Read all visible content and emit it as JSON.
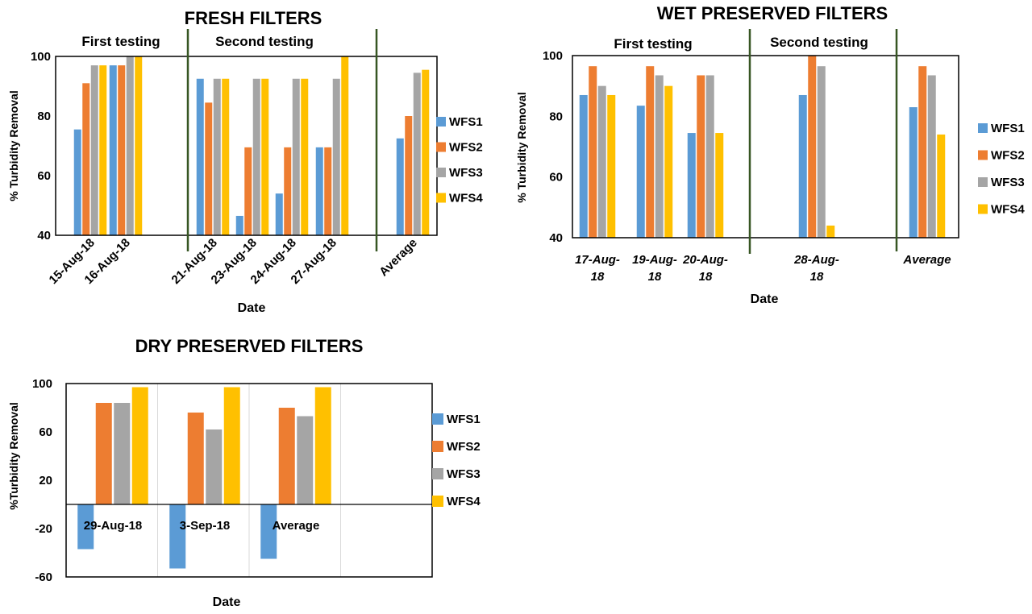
{
  "colors": {
    "WFS1": "#5B9BD5",
    "WFS2": "#ED7D31",
    "WFS3": "#A5A5A5",
    "WFS4": "#FFC000",
    "divider": "#375623"
  },
  "chart_data": [
    {
      "type": "bar",
      "title": "FRESH FILTERS",
      "xlabel": "Date",
      "ylabel": "% Turbidity Removal",
      "ylim": [
        40,
        100
      ],
      "yticks": [
        "40",
        "60",
        "80",
        "100"
      ],
      "groups": [
        "First testing",
        "Second testing"
      ],
      "categories": [
        "15-Aug-18",
        "16-Aug-18",
        "21-Aug-18",
        "23-Aug-18",
        "24-Aug-18",
        "27-Aug-18",
        "Average"
      ],
      "series": [
        {
          "name": "WFS1",
          "values": [
            75.5,
            97,
            92.5,
            46.5,
            54,
            69.5,
            72.5
          ]
        },
        {
          "name": "WFS2",
          "values": [
            91,
            97,
            84.5,
            69.5,
            69.5,
            69.5,
            80
          ]
        },
        {
          "name": "WFS3",
          "values": [
            97,
            100,
            92.5,
            92.5,
            92.5,
            92.5,
            94.5
          ]
        },
        {
          "name": "WFS4",
          "values": [
            97,
            100,
            92.5,
            92.5,
            92.5,
            100,
            95.5
          ]
        }
      ],
      "legend": "right",
      "grid": false
    },
    {
      "type": "bar",
      "title": "WET PRESERVED FILTERS",
      "xlabel": "Date",
      "ylabel": "% Turbidity Removal",
      "ylim": [
        40,
        100
      ],
      "yticks": [
        "40",
        "60",
        "80",
        "100"
      ],
      "groups": [
        "First testing",
        "Second testing"
      ],
      "categories": [
        "17-Aug-18",
        "19-Aug-18",
        "20-Aug-18",
        "28-Aug-18",
        "Average"
      ],
      "series": [
        {
          "name": "WFS1",
          "values": [
            87,
            83.5,
            74.5,
            87,
            83
          ]
        },
        {
          "name": "WFS2",
          "values": [
            96.5,
            96.5,
            93.5,
            100,
            96.5
          ]
        },
        {
          "name": "WFS3",
          "values": [
            90,
            93.5,
            93.5,
            96.5,
            93.5
          ]
        },
        {
          "name": "WFS4",
          "values": [
            87,
            90,
            74.5,
            44,
            74
          ]
        }
      ],
      "legend": "right",
      "grid": false
    },
    {
      "type": "bar",
      "title": "DRY PRESERVED FILTERS",
      "xlabel": "Date",
      "ylabel": "%Turbidity Removal",
      "ylim": [
        -60,
        100
      ],
      "yticks": [
        "-60",
        "-20",
        "20",
        "60",
        "100"
      ],
      "categories": [
        "29-Aug-18",
        "3-Sep-18",
        "Average"
      ],
      "series": [
        {
          "name": "WFS1",
          "values": [
            -37,
            -53,
            -45
          ]
        },
        {
          "name": "WFS2",
          "values": [
            84,
            76,
            80
          ]
        },
        {
          "name": "WFS3",
          "values": [
            84,
            62,
            73
          ]
        },
        {
          "name": "WFS4",
          "values": [
            97,
            97,
            97
          ]
        }
      ],
      "legend": "right",
      "grid": true
    }
  ]
}
